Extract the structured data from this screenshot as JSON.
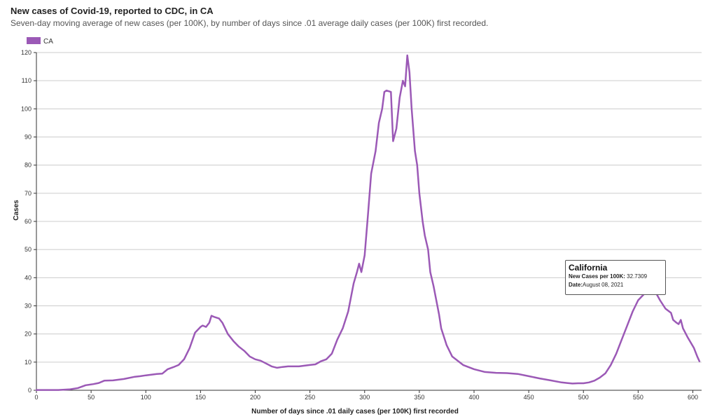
{
  "header": {
    "title": "New cases of Covid-19, reported to CDC, in CA",
    "subtitle": "Seven-day moving average of new cases (per 100K), by number of days since .01 average daily cases (per 100K) first recorded."
  },
  "tooltip": {
    "title": "California",
    "cases_label": "New Cases per 100K:",
    "cases_value": "32.7309",
    "date_label": "Date:",
    "date_value": "August 08, 2021"
  },
  "chart_data": {
    "type": "line",
    "xlabel": "Number of days since .01 daily cases (per 100K) first recorded",
    "ylabel": "Cases",
    "xlim": [
      0,
      608
    ],
    "ylim": [
      0,
      120
    ],
    "x_ticks": [
      0,
      50,
      100,
      150,
      200,
      250,
      300,
      350,
      400,
      450,
      500,
      550,
      600
    ],
    "y_ticks": [
      0,
      10,
      20,
      30,
      40,
      50,
      60,
      70,
      80,
      90,
      100,
      110,
      120
    ],
    "grid": true,
    "legend_position": "top-left",
    "colors": {
      "line": "#9b59b6",
      "grid": "#cccccc",
      "axis": "#333333"
    },
    "series": [
      {
        "name": "CA",
        "points": [
          [
            0,
            0.1
          ],
          [
            20,
            0.1
          ],
          [
            30,
            0.3
          ],
          [
            38,
            0.8
          ],
          [
            45,
            1.8
          ],
          [
            52,
            2.2
          ],
          [
            57,
            2.6
          ],
          [
            62,
            3.4
          ],
          [
            70,
            3.5
          ],
          [
            80,
            4
          ],
          [
            90,
            4.8
          ],
          [
            95,
            5
          ],
          [
            100,
            5.3
          ],
          [
            110,
            5.8
          ],
          [
            115,
            5.9
          ],
          [
            120,
            7.5
          ],
          [
            125,
            8.2
          ],
          [
            130,
            9
          ],
          [
            135,
            11
          ],
          [
            140,
            15
          ],
          [
            145,
            20.5
          ],
          [
            150,
            22.5
          ],
          [
            152,
            23
          ],
          [
            155,
            22.5
          ],
          [
            158,
            24
          ],
          [
            160,
            26.5
          ],
          [
            163,
            26
          ],
          [
            167,
            25.5
          ],
          [
            170,
            24
          ],
          [
            175,
            20
          ],
          [
            180,
            17.5
          ],
          [
            185,
            15.5
          ],
          [
            190,
            14
          ],
          [
            195,
            12
          ],
          [
            200,
            11
          ],
          [
            205,
            10.5
          ],
          [
            210,
            9.5
          ],
          [
            215,
            8.5
          ],
          [
            220,
            8
          ],
          [
            225,
            8.3
          ],
          [
            230,
            8.5
          ],
          [
            240,
            8.5
          ],
          [
            250,
            9
          ],
          [
            255,
            9.2
          ],
          [
            260,
            10.3
          ],
          [
            265,
            11
          ],
          [
            270,
            13
          ],
          [
            275,
            18
          ],
          [
            280,
            22
          ],
          [
            285,
            28
          ],
          [
            290,
            38
          ],
          [
            293,
            42
          ],
          [
            295,
            45
          ],
          [
            297,
            42
          ],
          [
            300,
            48
          ],
          [
            303,
            62
          ],
          [
            306,
            77
          ],
          [
            310,
            85
          ],
          [
            313,
            95
          ],
          [
            316,
            100
          ],
          [
            318,
            106
          ],
          [
            320,
            106.5
          ],
          [
            324,
            106
          ],
          [
            326,
            88.5
          ],
          [
            329,
            93
          ],
          [
            332,
            104
          ],
          [
            335,
            110
          ],
          [
            337,
            108
          ],
          [
            339,
            119
          ],
          [
            341,
            113
          ],
          [
            343,
            100
          ],
          [
            346,
            85
          ],
          [
            348,
            80
          ],
          [
            350,
            70
          ],
          [
            353,
            60
          ],
          [
            355,
            55
          ],
          [
            358,
            50
          ],
          [
            360,
            42
          ],
          [
            363,
            37
          ],
          [
            365,
            33
          ],
          [
            368,
            27
          ],
          [
            370,
            22
          ],
          [
            375,
            16
          ],
          [
            380,
            12
          ],
          [
            390,
            9
          ],
          [
            400,
            7.5
          ],
          [
            410,
            6.5
          ],
          [
            420,
            6.2
          ],
          [
            430,
            6.1
          ],
          [
            440,
            5.8
          ],
          [
            450,
            5
          ],
          [
            460,
            4.2
          ],
          [
            470,
            3.5
          ],
          [
            480,
            2.8
          ],
          [
            485,
            2.6
          ],
          [
            490,
            2.4
          ],
          [
            495,
            2.5
          ],
          [
            500,
            2.5
          ],
          [
            505,
            2.8
          ],
          [
            510,
            3.4
          ],
          [
            515,
            4.5
          ],
          [
            520,
            6
          ],
          [
            525,
            9
          ],
          [
            530,
            13
          ],
          [
            535,
            18
          ],
          [
            540,
            23
          ],
          [
            545,
            28
          ],
          [
            550,
            32
          ],
          [
            555,
            34
          ],
          [
            560,
            36
          ],
          [
            565,
            35.5
          ],
          [
            570,
            32
          ],
          [
            575,
            29
          ],
          [
            580,
            27.5
          ],
          [
            582,
            25
          ],
          [
            585,
            24
          ],
          [
            587,
            23.5
          ],
          [
            589,
            25
          ],
          [
            591,
            22
          ],
          [
            595,
            19
          ],
          [
            598,
            17
          ],
          [
            601,
            15
          ],
          [
            604,
            12
          ],
          [
            606,
            10.3
          ]
        ]
      }
    ]
  }
}
